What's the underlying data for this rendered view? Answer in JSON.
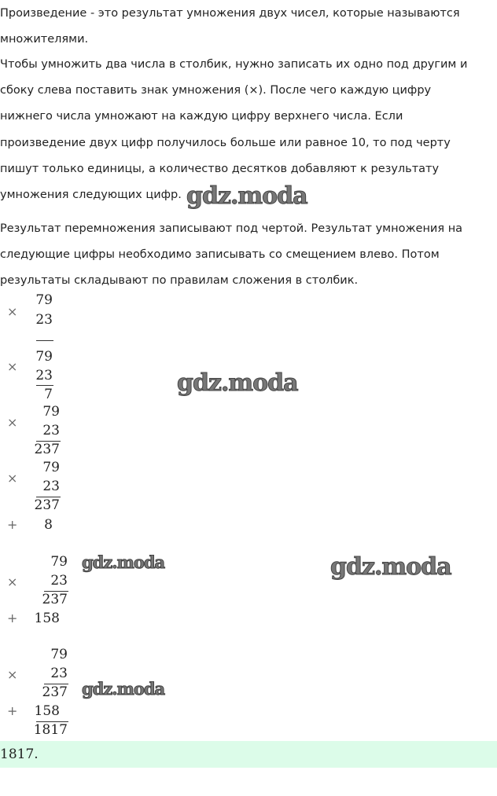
{
  "paragraphs": [
    "Произведение - это результат умножения двух чисел, которые называются",
    "множителями.",
    "Чтобы умножить два числа в столбик, нужно записать их одно под другим и",
    "сбоку слева поставить знак умножения (×). После чего каждую цифру",
    "нижнего числа умножают на каждую цифру верхнего числа. Если",
    "произведение двух цифр получилось больше или равное 10, то под черту",
    "пишут только единицы, а количество десятков добавляют к результату",
    "умножения следующих цифр.",
    "Результат перемножения записывают под чертой. Результат умножения на",
    "следующие цифры необходимо записывать со смещением влево. Потом",
    "результаты складывают по правилам сложения в столбик."
  ],
  "steps": {
    "times": "×",
    "plus": "+",
    "a": "79",
    "b": "23",
    "p1": "7",
    "p2": "237",
    "s1": "8",
    "s2": "158",
    "total": "1817"
  },
  "answer": "1817.",
  "watermark": "gdz.moda"
}
